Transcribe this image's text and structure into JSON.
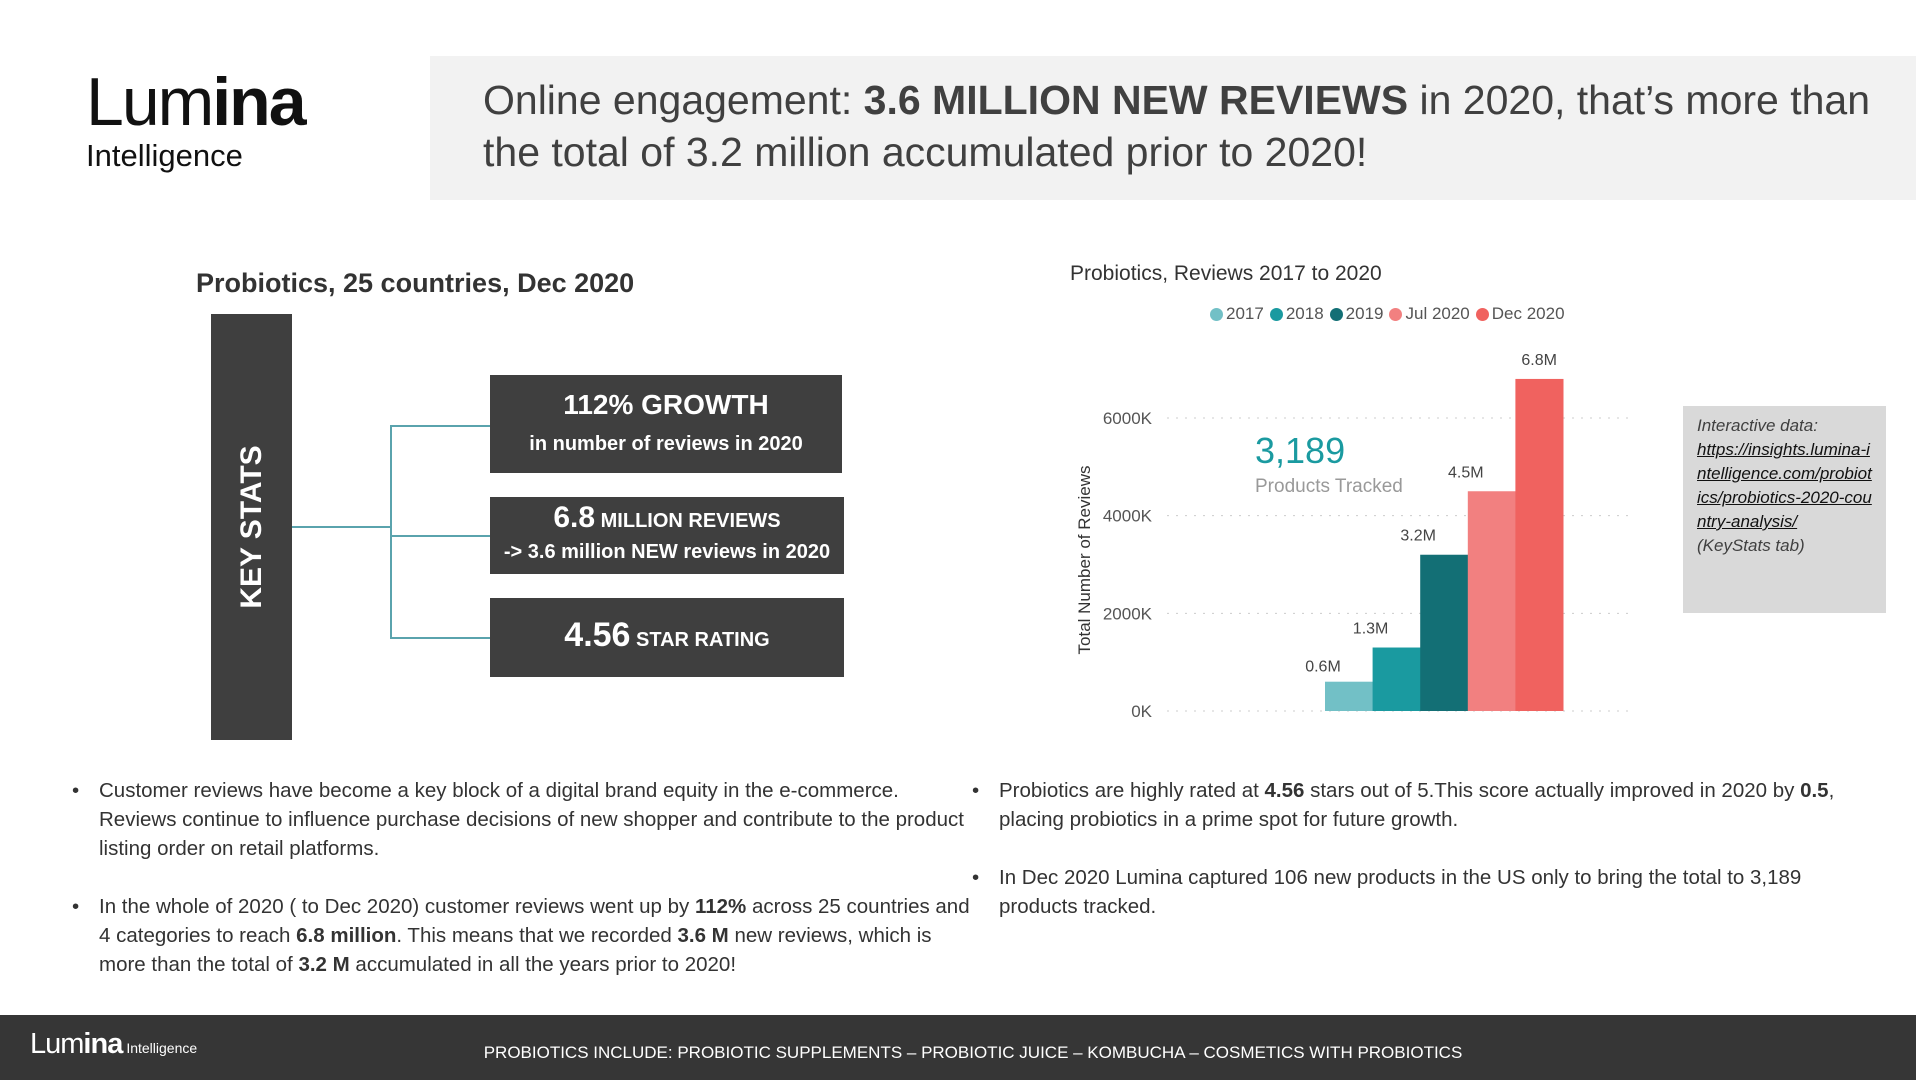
{
  "logo": {
    "part1": "Lum",
    "part2": "ina",
    "sub": "Intelligence"
  },
  "header": {
    "pre": "Online engagement: ",
    "bold": "3.6 MILLION NEW REVIEWS",
    "post": " in 2020, that’s more than the total of 3.2 million accumulated prior to 2020!"
  },
  "keystats": {
    "heading": "Probiotics, 25 countries, Dec 2020",
    "bar_label": "KEY STATS",
    "box1": {
      "big": "112% GROWTH",
      "small": "in number of reviews in 2020"
    },
    "box2": {
      "big": "6.8",
      "big_suffix": " MILLION REVIEWS",
      "small": "-> 3.6 million NEW reviews in 2020"
    },
    "box3": {
      "big": "4.56",
      "big_suffix": " STAR RATING"
    }
  },
  "chart_data": {
    "type": "bar",
    "title": "Probiotics, Reviews 2017 to 2020",
    "ylabel": "Total Number of Reviews",
    "categories": [
      "2017",
      "2018",
      "2019",
      "Jul 2020",
      "Dec 2020"
    ],
    "values": [
      0.6,
      1.3,
      3.2,
      4.5,
      6.8
    ],
    "value_unit": "M",
    "data_labels": [
      "0.6M",
      "1.3M",
      "3.2M",
      "4.5M",
      "6.8M"
    ],
    "colors": [
      "#72c0c6",
      "#1a9aa0",
      "#136f75",
      "#f28080",
      "#f0625f"
    ],
    "yticks": [
      "0K",
      "2000K",
      "4000K",
      "6000K"
    ],
    "ytick_values": [
      0,
      2,
      4,
      6
    ],
    "ylim": [
      0,
      7
    ],
    "grid": true,
    "legend": "top"
  },
  "kpi": {
    "value": "3,189",
    "label": "Products Tracked"
  },
  "interactive": {
    "label": "Interactive data:",
    "link": "https://insights.lumina-intelligence.com/probiotics/probiotics-2020-country-analysis/",
    "note": "(KeyStats tab)"
  },
  "bullets_left": [
    [
      {
        "t": "Customer reviews have become a key block of a digital brand equity in the e-commerce. Reviews continue to influence purchase decisions of new shopper and contribute to the product listing order on retail platforms."
      }
    ],
    [
      {
        "t": "In the whole of 2020 ( to Dec 2020) customer reviews went up by "
      },
      {
        "t": "112%",
        "b": true
      },
      {
        "t": " across 25 countries and 4 categories to reach "
      },
      {
        "t": "6.8 million",
        "b": true
      },
      {
        "t": ". This means that we recorded "
      },
      {
        "t": "3.6 M",
        "b": true
      },
      {
        "t": " new reviews, which is more than the total of "
      },
      {
        "t": "3.2 M",
        "b": true
      },
      {
        "t": " accumulated in all the years prior to 2020!"
      }
    ]
  ],
  "bullets_right": [
    [
      {
        "t": "Probiotics are highly rated at "
      },
      {
        "t": "4.56",
        "b": true
      },
      {
        "t": " stars out of 5.This score actually improved in 2020 by "
      },
      {
        "t": "0.5",
        "b": true
      },
      {
        "t": ", placing probiotics in a prime spot for future growth."
      }
    ],
    [
      {
        "t": "In Dec 2020 Lumina captured 106 new products in the US only to bring the total to 3,189 products tracked."
      }
    ]
  ],
  "footer": {
    "logo1": "Lum",
    "logo2": "ina",
    "logo_sub": "Intelligence",
    "text": "PROBIOTICS INCLUDE: PROBIOTIC SUPPLEMENTS – PROBIOTIC JUICE – KOMBUCHA – COSMETICS WITH PROBIOTICS"
  }
}
